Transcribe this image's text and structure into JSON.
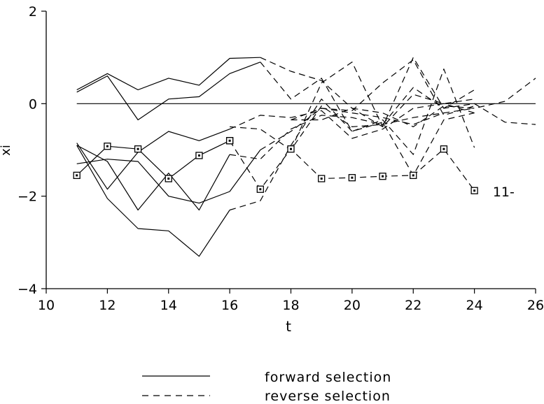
{
  "chart_data": {
    "type": "line",
    "xlabel": "t",
    "ylabel": "xi",
    "xlim": [
      10,
      26
    ],
    "ylim": [
      -4,
      2
    ],
    "xticks": [
      "10",
      "12",
      "14",
      "16",
      "18",
      "20",
      "22",
      "24",
      "26"
    ],
    "yticks": [
      "2",
      "0",
      "-2",
      "-4"
    ],
    "reference_line": 0,
    "legend": {
      "placement": "bottom",
      "entries": [
        {
          "label": "forward selection",
          "style": "solid"
        },
        {
          "label": "reverse selection",
          "style": "dashed"
        }
      ]
    },
    "annotations": [
      {
        "text": "11-",
        "x": 24.6,
        "y": -1.9
      }
    ],
    "series": [
      {
        "style": "solid",
        "marker": "none",
        "points": [
          [
            11,
            0.3
          ],
          [
            12,
            0.65
          ],
          [
            13,
            0.3
          ],
          [
            14,
            0.55
          ],
          [
            15,
            0.4
          ],
          [
            16,
            0.98
          ],
          [
            17,
            1.0
          ]
        ]
      },
      {
        "style": "dashed",
        "marker": "none",
        "points": [
          [
            17,
            1.0
          ],
          [
            18,
            0.7
          ],
          [
            19,
            0.5
          ],
          [
            20,
            -0.1
          ],
          [
            21,
            -0.5
          ],
          [
            22,
            0.2
          ],
          [
            23,
            0.0
          ],
          [
            24,
            0.1
          ]
        ]
      },
      {
        "style": "solid",
        "marker": "none",
        "points": [
          [
            11,
            0.25
          ],
          [
            12,
            0.6
          ],
          [
            13,
            -0.35
          ],
          [
            14,
            0.1
          ],
          [
            15,
            0.15
          ],
          [
            16,
            0.65
          ],
          [
            17,
            0.9
          ]
        ]
      },
      {
        "style": "dashed",
        "marker": "none",
        "points": [
          [
            17,
            0.9
          ],
          [
            18,
            0.1
          ],
          [
            19,
            0.55
          ],
          [
            20,
            -0.6
          ],
          [
            21,
            -0.35
          ],
          [
            22,
            -1.1
          ],
          [
            23,
            0.75
          ],
          [
            24,
            -0.95
          ]
        ]
      },
      {
        "style": "dashed",
        "marker": "none",
        "points": [
          [
            18,
            -1.0
          ],
          [
            19,
            0.45
          ],
          [
            20,
            0.9
          ],
          [
            21,
            -0.5
          ],
          [
            22,
            1.0
          ],
          [
            23,
            -0.1
          ],
          [
            24,
            0.3
          ]
        ]
      },
      {
        "style": "dashed",
        "marker": "none",
        "points": [
          [
            18,
            -0.35
          ],
          [
            19,
            -0.1
          ],
          [
            20,
            -0.15
          ],
          [
            21,
            0.45
          ],
          [
            22,
            0.95
          ],
          [
            23,
            -0.25
          ],
          [
            24,
            -0.05
          ]
        ]
      },
      {
        "style": "dashed",
        "marker": "none",
        "points": [
          [
            16,
            -0.5
          ],
          [
            17,
            -0.55
          ],
          [
            18,
            -1.0
          ],
          [
            19,
            -0.05
          ],
          [
            20,
            -0.5
          ],
          [
            21,
            -0.45
          ],
          [
            22,
            0.35
          ],
          [
            23,
            -0.1
          ],
          [
            24,
            0.0
          ],
          [
            25,
            -0.4
          ],
          [
            26,
            -0.45
          ]
        ]
      },
      {
        "style": "dashed",
        "marker": "none",
        "points": [
          [
            18,
            -0.35
          ],
          [
            19,
            -0.35
          ],
          [
            20,
            -0.1
          ],
          [
            21,
            -0.2
          ],
          [
            22,
            -0.5
          ],
          [
            23,
            -0.05
          ],
          [
            24,
            -0.1
          ],
          [
            25,
            0.05
          ],
          [
            26,
            0.55
          ]
        ]
      },
      {
        "style": "solid",
        "marker": "none",
        "points": [
          [
            11,
            -0.85
          ],
          [
            12,
            -1.85
          ],
          [
            13,
            -1.05
          ],
          [
            14,
            -0.6
          ],
          [
            15,
            -0.8
          ],
          [
            16,
            -0.55
          ]
        ]
      },
      {
        "style": "dashed",
        "marker": "none",
        "points": [
          [
            16,
            -0.55
          ],
          [
            17,
            -0.25
          ],
          [
            18,
            -0.3
          ],
          [
            19,
            -0.15
          ],
          [
            20,
            -0.75
          ],
          [
            21,
            -0.55
          ],
          [
            22,
            -0.1
          ],
          [
            23,
            0.0
          ],
          [
            24,
            -0.2
          ]
        ]
      },
      {
        "style": "solid",
        "marker": "none",
        "points": [
          [
            11,
            -0.9
          ],
          [
            12,
            -1.25
          ],
          [
            13,
            -2.3
          ],
          [
            14,
            -1.5
          ],
          [
            15,
            -2.3
          ],
          [
            16,
            -1.1
          ]
        ]
      },
      {
        "style": "dashed",
        "marker": "none",
        "points": [
          [
            16,
            -1.1
          ],
          [
            17,
            -1.2
          ],
          [
            18,
            -0.55
          ],
          [
            19,
            -0.25
          ],
          [
            20,
            -0.3
          ],
          [
            21,
            -0.45
          ],
          [
            22,
            -0.3
          ],
          [
            23,
            -0.2
          ]
        ]
      },
      {
        "style": "solid",
        "marker": "none",
        "points": [
          [
            11,
            -1.3
          ],
          [
            12,
            -1.2
          ],
          [
            13,
            -1.25
          ],
          [
            14,
            -2.0
          ],
          [
            15,
            -2.15
          ],
          [
            16,
            -1.9
          ],
          [
            17,
            -1.0
          ]
        ]
      },
      {
        "style": "dashed",
        "marker": "none",
        "points": [
          [
            17,
            -1.0
          ],
          [
            18,
            -0.6
          ],
          [
            19,
            -0.1
          ],
          [
            20,
            -0.2
          ],
          [
            21,
            -0.3
          ],
          [
            22,
            -0.45
          ],
          [
            23,
            -0.2
          ],
          [
            24,
            -0.1
          ]
        ]
      },
      {
        "style": "solid",
        "marker": "none",
        "points": [
          [
            11,
            -0.9
          ],
          [
            12,
            -2.05
          ],
          [
            13,
            -2.7
          ],
          [
            14,
            -2.75
          ],
          [
            15,
            -3.3
          ],
          [
            16,
            -2.3
          ]
        ]
      },
      {
        "style": "dashed",
        "marker": "none",
        "points": [
          [
            16,
            -2.3
          ],
          [
            17,
            -2.1
          ],
          [
            18,
            -0.9
          ],
          [
            19,
            0.1
          ],
          [
            20,
            -0.6
          ],
          [
            21,
            -0.4
          ],
          [
            22,
            -1.55
          ],
          [
            23,
            -0.35
          ],
          [
            24,
            -0.2
          ]
        ]
      },
      {
        "style": "solid",
        "marker": "square",
        "points": [
          [
            11,
            -1.55
          ],
          [
            12,
            -0.92
          ],
          [
            13,
            -0.98
          ],
          [
            14,
            -1.62
          ],
          [
            15,
            -1.12
          ],
          [
            16,
            -0.8
          ]
        ]
      },
      {
        "style": "dashed",
        "marker": "square",
        "points": [
          [
            16,
            -0.8
          ],
          [
            17,
            -1.85
          ],
          [
            18,
            -0.98
          ],
          [
            19,
            -1.62
          ],
          [
            20,
            -1.6
          ],
          [
            21,
            -1.57
          ],
          [
            22,
            -1.55
          ],
          [
            23,
            -0.98
          ],
          [
            24,
            -1.88
          ]
        ]
      }
    ]
  }
}
